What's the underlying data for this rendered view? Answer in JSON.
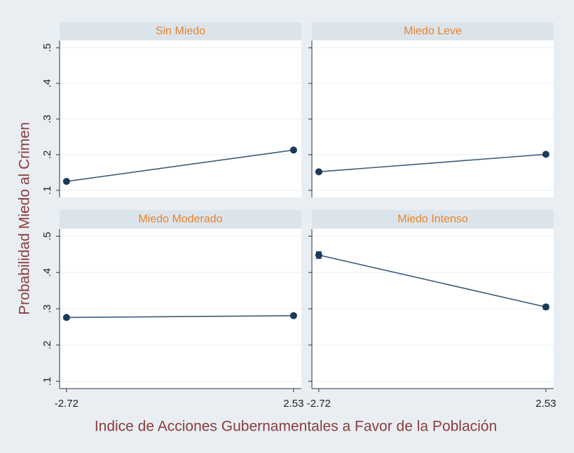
{
  "chart_data": {
    "type": "line",
    "x_label": "Indice de Acciones Gubernamentales a Favor de la Población",
    "y_label": "Probabilidad Miedo al Crimen",
    "x": [
      -2.72,
      2.53
    ],
    "xlim": [
      -2.88,
      2.71
    ],
    "xticks": [
      -2.72,
      2.53
    ],
    "ylim": [
      0.08,
      0.52
    ],
    "yticks": [
      {
        "value": 0.1,
        "label": ".1"
      },
      {
        "value": 0.2,
        "label": ".2"
      },
      {
        "value": 0.3,
        "label": ".3"
      },
      {
        "value": 0.4,
        "label": ".4"
      },
      {
        "value": 0.5,
        "label": ".5"
      }
    ],
    "grid": true,
    "color": "#3d5c7a",
    "marker_color": "#1b3a5a",
    "panels": [
      {
        "title": "Sin Miedo",
        "values": [
          0.125,
          0.213
        ],
        "errors": [
          0.004,
          0.005
        ]
      },
      {
        "title": "Miedo Leve",
        "values": [
          0.152,
          0.201
        ],
        "errors": [
          0.004,
          0.004
        ]
      },
      {
        "title": "Miedo Moderado",
        "values": [
          0.276,
          0.281
        ],
        "errors": [
          0.004,
          0.004
        ]
      },
      {
        "title": "Miedo Intenso",
        "values": [
          0.448,
          0.305
        ],
        "errors": [
          0.009,
          0.006
        ]
      }
    ]
  }
}
